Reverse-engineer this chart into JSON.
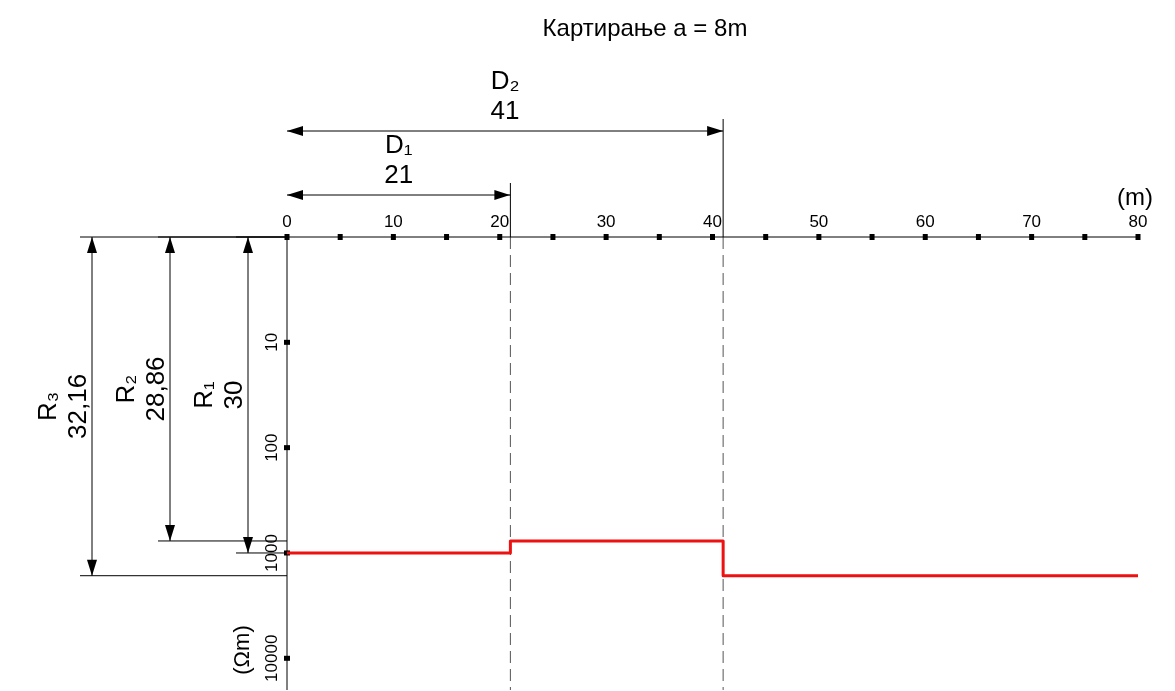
{
  "chart_data": {
    "type": "step",
    "title": "Картирање a = 8m",
    "xlabel": "(m)",
    "ylabel": "(Ωm)",
    "x": [
      0,
      21,
      41,
      80
    ],
    "series": [
      {
        "color": "#ee1111",
        "values": [
          1000,
          769,
          1644,
          1644
        ]
      }
    ],
    "xlim": [
      0,
      80
    ],
    "xticks": [
      0,
      {
        "value": 5,
        "label": null
      },
      10,
      {
        "value": 15,
        "label": null
      },
      20,
      {
        "value": 25,
        "label": null
      },
      30,
      {
        "value": 35,
        "label": null
      },
      40,
      {
        "value": 45,
        "label": null
      },
      50,
      {
        "value": 55,
        "label": null
      },
      60,
      {
        "value": 65,
        "label": null
      },
      70,
      {
        "value": 75,
        "label": null
      },
      80
    ],
    "ylim": [
      20000,
      1
    ],
    "yticks": [
      10,
      100,
      1000,
      10000
    ],
    "log": "y",
    "grid": false,
    "ref_lines": [
      {
        "axis": "x",
        "value": 21,
        "color": "#555555",
        "line_style": "dashed"
      },
      {
        "axis": "x",
        "value": 41,
        "color": "#555555",
        "line_style": "dashed"
      }
    ],
    "marker": "none",
    "line_style": "solid",
    "annotations": [
      "D₁\n21",
      "D₂\n41",
      "R₁\n30",
      "R₂\n28,86",
      "R₃\n32,16"
    ]
  }
}
